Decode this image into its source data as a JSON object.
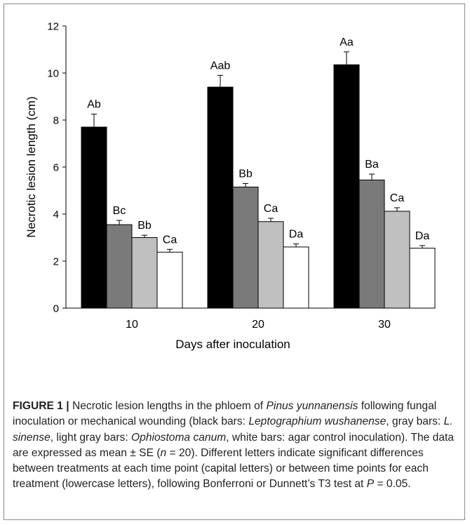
{
  "chart_data": {
    "type": "bar",
    "xlabel": "Days after inoculation",
    "ylabel": "Necrotic lesion length (cm)",
    "ylim": [
      0,
      12
    ],
    "yticks": [
      "0",
      "2",
      "4",
      "6",
      "8",
      "10",
      "12"
    ],
    "categories": [
      "10",
      "20",
      "30"
    ],
    "series": [
      {
        "color": "#000000",
        "values": [
          7.7,
          9.4,
          10.35
        ],
        "errors": [
          0.55,
          0.5,
          0.55
        ],
        "labels": [
          "Ab",
          "Aab",
          "Aa"
        ]
      },
      {
        "color": "#7a7a7a",
        "values": [
          3.55,
          5.15,
          5.45
        ],
        "errors": [
          0.18,
          0.15,
          0.25
        ],
        "labels": [
          "Bc",
          "Bb",
          "Ba"
        ]
      },
      {
        "color": "#c0c0c0",
        "values": [
          3.0,
          3.68,
          4.12
        ],
        "errors": [
          0.1,
          0.14,
          0.15
        ],
        "labels": [
          "Bb",
          "Ca",
          "Ca"
        ]
      },
      {
        "color": "#ffffff",
        "values": [
          2.38,
          2.6,
          2.55
        ],
        "errors": [
          0.12,
          0.13,
          0.11
        ],
        "labels": [
          "Ca",
          "Da",
          "Da"
        ]
      }
    ],
    "grid": false,
    "legend": "none"
  },
  "caption": {
    "label": "FIGURE 1 |",
    "t1": " Necrotic lesion lengths in the phloem of ",
    "i1": "Pinus yunnanensis",
    "t2": " following fungal inoculation or mechanical wounding (black bars: ",
    "i2": "Leptographium wushanense",
    "t3": ", gray bars: ",
    "i3": "L. sinense",
    "t4": ", light gray bars: ",
    "i4": "Ophiostoma canum",
    "t5": ", white bars: agar control inoculation). The data are expressed as mean ± SE (",
    "i5": "n",
    "t6": " = 20). Different letters indicate significant differences between treatments at each time point (capital letters) or between time points for each treatment (lowercase letters), following Bonferroni or Dunnett’s T3 test at ",
    "i6": "P",
    "t7": " = 0.05."
  }
}
